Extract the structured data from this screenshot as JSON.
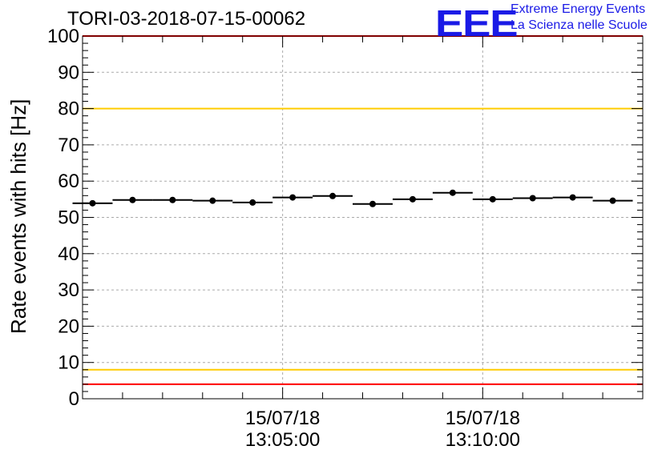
{
  "chart_data": {
    "type": "scatter",
    "title": "TORI-03-2018-07-15-00062",
    "ylabel": "Rate events with hits [Hz]",
    "xlabel": "",
    "ylim": [
      0,
      100
    ],
    "yticks": [
      0,
      10,
      20,
      30,
      40,
      50,
      60,
      70,
      80,
      90,
      100
    ],
    "xlim_seconds": [
      0,
      840
    ],
    "xticks": [
      {
        "seconds": 300,
        "date": "15/07/18",
        "time": "13:05:00"
      },
      {
        "seconds": 600,
        "date": "15/07/18",
        "time": "13:10:00"
      }
    ],
    "bin_width_seconds": 60,
    "series": [
      {
        "name": "rate",
        "x_seconds": [
          15,
          75,
          135,
          195,
          255,
          315,
          375,
          435,
          495,
          555,
          615,
          675,
          735,
          795
        ],
        "values": [
          53.9,
          54.8,
          54.8,
          54.6,
          54.1,
          55.5,
          55.9,
          53.7,
          55.0,
          56.8,
          55.0,
          55.3,
          55.5,
          54.6
        ]
      }
    ],
    "reference_lines": [
      {
        "value": 100,
        "color": "#ff0000"
      },
      {
        "value": 80,
        "color": "#ffcc00"
      },
      {
        "value": 8,
        "color": "#ffcc00"
      },
      {
        "value": 4,
        "color": "#ff0000"
      }
    ],
    "grid": true
  },
  "logo": {
    "mark": "EEE",
    "line1": "Extreme Energy Events",
    "line2": "La Scienza nelle Scuole"
  },
  "colors": {
    "logo": "#1a1ae6",
    "points": "#000000",
    "grid": "#aaaaaa"
  }
}
